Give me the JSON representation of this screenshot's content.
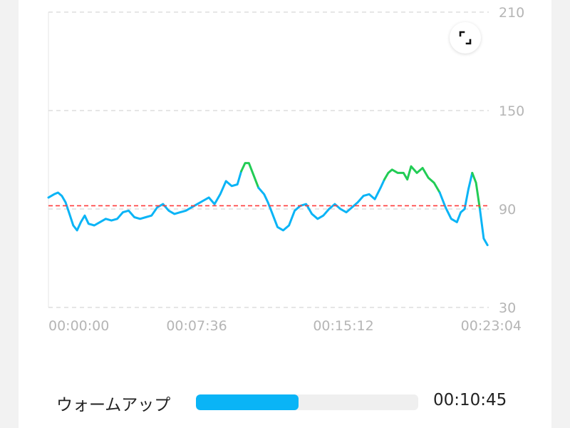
{
  "chart_data": {
    "type": "line",
    "y_ticks": [
      "210",
      "150",
      "90",
      "30"
    ],
    "x_ticks": [
      "00:00:00",
      "00:07:36",
      "00:15:12",
      "00:23:04"
    ],
    "ylim": [
      30,
      210
    ],
    "grid": true,
    "reference_line": 92,
    "x_minutes": [
      0,
      0.3,
      0.5,
      0.7,
      0.9,
      1.1,
      1.3,
      1.5,
      1.7,
      1.9,
      2.1,
      2.4,
      2.7,
      3.0,
      3.3,
      3.6,
      3.9,
      4.2,
      4.5,
      4.8,
      5.1,
      5.4,
      5.7,
      6.0,
      6.3,
      6.6,
      6.9,
      7.2,
      7.5,
      7.8,
      8.1,
      8.4,
      8.7,
      9.0,
      9.3,
      9.6,
      9.9,
      10.1,
      10.3,
      10.5,
      10.7,
      11.0,
      11.3,
      11.5,
      11.7,
      12.0,
      12.3,
      12.6,
      12.9,
      13.2,
      13.5,
      13.8,
      14.1,
      14.4,
      14.7,
      15.0,
      15.3,
      15.6,
      15.9,
      16.2,
      16.5,
      16.8,
      17.1,
      17.4,
      17.6,
      17.8,
      18.0,
      18.3,
      18.6,
      18.8,
      19.0,
      19.3,
      19.6,
      19.9,
      20.2,
      20.5,
      20.8,
      21.1,
      21.4,
      21.6,
      21.8,
      22.0,
      22.2,
      22.4,
      22.6,
      22.8,
      23.0
    ],
    "values": [
      97,
      99,
      100,
      98,
      94,
      87,
      80,
      77,
      82,
      86,
      81,
      80,
      82,
      84,
      83,
      84,
      88,
      89,
      85,
      84,
      85,
      86,
      91,
      93,
      89,
      87,
      88,
      89,
      91,
      93,
      95,
      97,
      93,
      99,
      107,
      104,
      105,
      113,
      118,
      118,
      112,
      103,
      99,
      94,
      88,
      79,
      77,
      80,
      89,
      92,
      93,
      87,
      84,
      86,
      90,
      93,
      90,
      88,
      91,
      94,
      98,
      99,
      96,
      103,
      108,
      112,
      114,
      112,
      112,
      108,
      116,
      112,
      115,
      109,
      106,
      100,
      91,
      84,
      82,
      88,
      90,
      102,
      112,
      106,
      90,
      72,
      68
    ],
    "line_color": "#0ab4f6",
    "high_zone_color": "#22cc55",
    "reference_color": "#ff3b3b"
  },
  "expand_icon": "expand-icon",
  "zone": {
    "label": "ウォームアップ",
    "progress": 0.46,
    "duration": "00:10:45",
    "color": "#0ab4f6"
  }
}
